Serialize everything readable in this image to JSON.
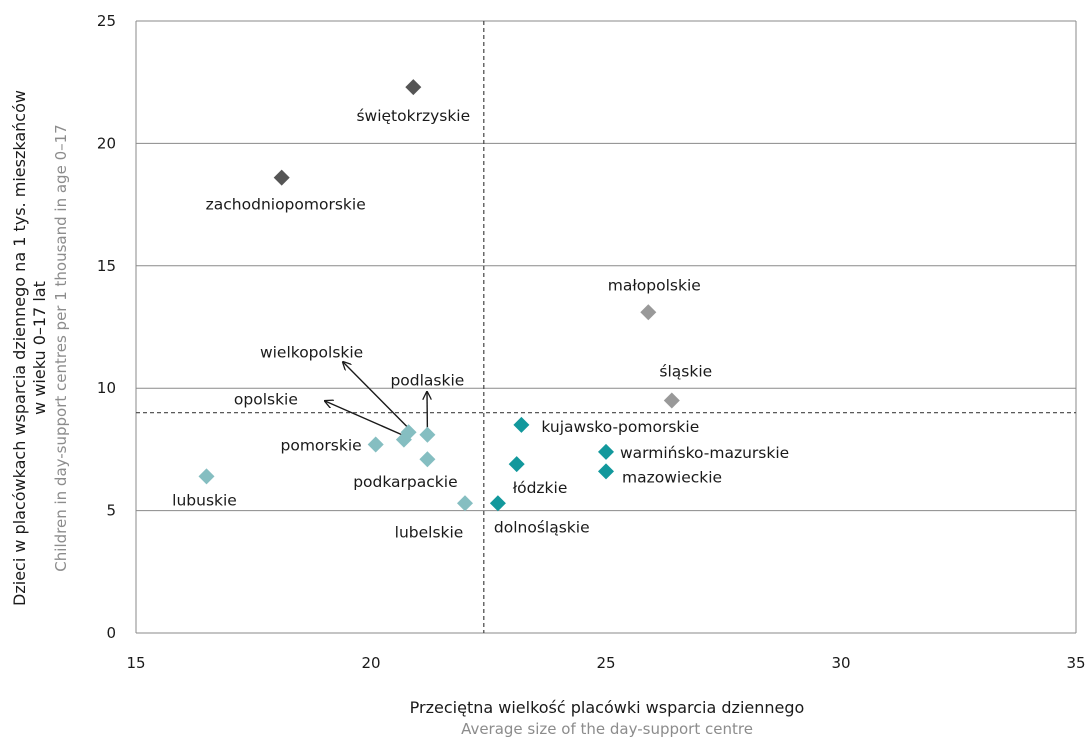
{
  "chart_data": {
    "type": "scatter",
    "xlabel": "Przeciętna wielkość placówki wsparcia dziennego",
    "xlabel_en": "Average size of the day-support centre",
    "ylabel": "Dzieci w placówkach wsparcia dziennego na 1 tys. mieszkańców w wieku 0–17 lat",
    "ylabel_line1": "Dzieci w placówkach wsparcia dziennego na 1 tys. mieszkańców",
    "ylabel_line2": "w wieku 0–17 lat",
    "ylabel_en": "Children in day-support centres per 1 thousand in age 0–17",
    "xlim": [
      15,
      35
    ],
    "ylim": [
      0,
      25
    ],
    "x_ticks": [
      15,
      20,
      25,
      30,
      35
    ],
    "y_ticks": [
      0,
      5,
      10,
      15,
      20,
      25
    ],
    "x_tick_labels": [
      "15",
      "20",
      "25",
      "30",
      "35"
    ],
    "y_tick_labels": [
      "0",
      "5",
      "10",
      "15",
      "20",
      "25"
    ],
    "grid": "horizontal",
    "reference_lines": {
      "x": 22.4,
      "y": 9.0
    },
    "groups": {
      "dark": "#555555",
      "gray": "#999999",
      "teal": "#12989c",
      "light": "#85bec1"
    },
    "points": [
      {
        "name": "świętokrzyskie",
        "x": 20.9,
        "y": 22.3,
        "group": "dark"
      },
      {
        "name": "zachodniopomorskie",
        "x": 18.1,
        "y": 18.6,
        "group": "dark"
      },
      {
        "name": "małopolskie",
        "x": 25.9,
        "y": 13.1,
        "group": "gray"
      },
      {
        "name": "śląskie",
        "x": 26.4,
        "y": 9.5,
        "group": "gray"
      },
      {
        "name": "kujawsko-pomorskie",
        "x": 23.2,
        "y": 8.5,
        "group": "teal"
      },
      {
        "name": "warmińsko-mazurskie",
        "x": 25.0,
        "y": 7.4,
        "group": "teal"
      },
      {
        "name": "łódzkie",
        "x": 23.1,
        "y": 6.9,
        "group": "teal"
      },
      {
        "name": "mazowieckie",
        "x": 25.0,
        "y": 6.6,
        "group": "teal"
      },
      {
        "name": "dolnośląskie",
        "x": 22.7,
        "y": 5.3,
        "group": "teal"
      },
      {
        "name": "lubuskie",
        "x": 16.5,
        "y": 6.4,
        "group": "light"
      },
      {
        "name": "pomorskie",
        "x": 20.1,
        "y": 7.7,
        "group": "light"
      },
      {
        "name": "opolskie",
        "x": 20.7,
        "y": 7.9,
        "group": "light"
      },
      {
        "name": "wielkopolskie",
        "x": 20.8,
        "y": 8.2,
        "group": "light"
      },
      {
        "name": "podlaskie",
        "x": 21.2,
        "y": 8.1,
        "group": "light"
      },
      {
        "name": "podkarpackie",
        "x": 21.2,
        "y": 7.1,
        "group": "light"
      },
      {
        "name": "lubelskie",
        "x": 22.0,
        "y": 5.3,
        "group": "light"
      }
    ]
  }
}
